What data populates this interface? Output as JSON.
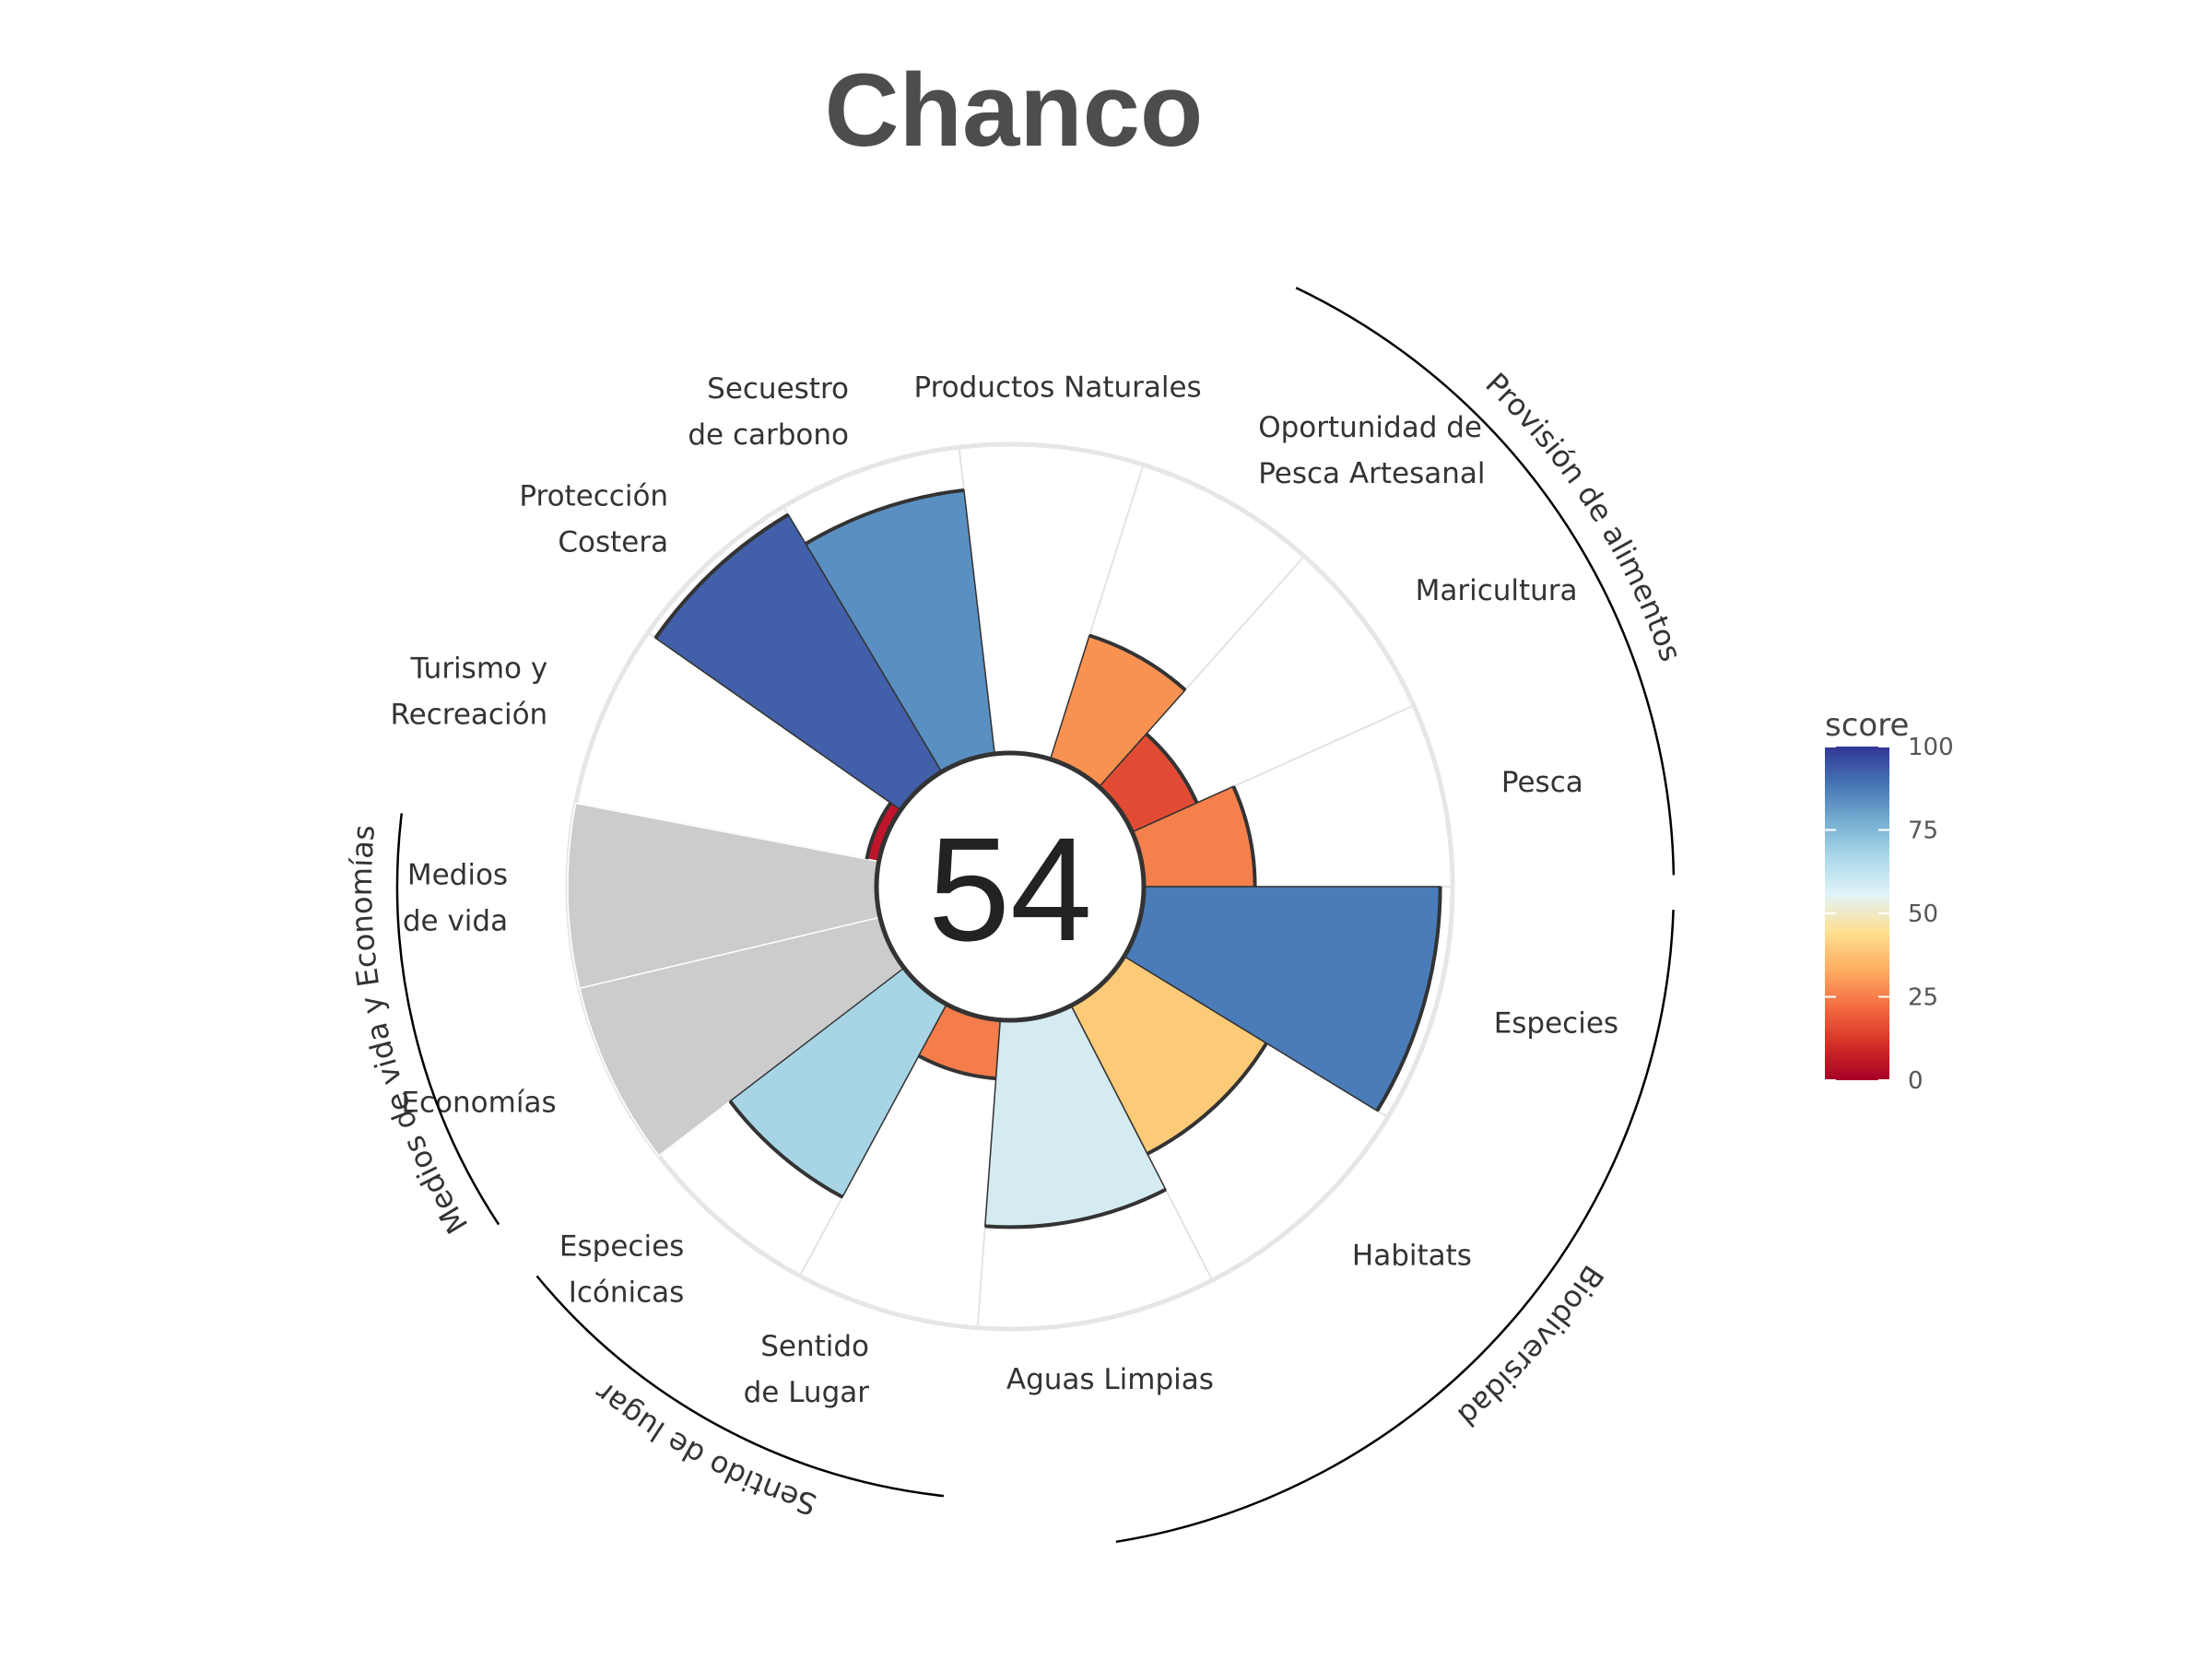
{
  "title": "Chanco",
  "chart_data": {
    "type": "polar-bar",
    "title": "Chanco",
    "overall_score": "54",
    "rlim": [
      0,
      100
    ],
    "grid": true,
    "legend": {
      "title": "score",
      "placement": "right",
      "ticks": [
        "0",
        "25",
        "50",
        "75",
        "100"
      ]
    },
    "colors": {
      "gradient_stops": [
        "#a50026",
        "#d73027",
        "#f46d43",
        "#fdae61",
        "#fee090",
        "#e0f3f8",
        "#abd9e9",
        "#74add1",
        "#4575b4",
        "#313695"
      ],
      "missing": "#cccccc",
      "outline": "#333333",
      "gridline": "#e3e3e3",
      "grid_circle": "#e6e6e6"
    },
    "categories": [
      {
        "label": [
          "Pesca"
        ],
        "value": 36,
        "weight": 1,
        "color": "#f6804b"
      },
      {
        "label": [
          "Maricultura"
        ],
        "value": 23,
        "weight": 1,
        "color": "#e24b33"
      },
      {
        "label": [
          "Oportunidad de",
          "Pesca Artesanal"
        ],
        "value": 42,
        "weight": 1,
        "color": "#f99251"
      },
      {
        "label": [
          "Productos Naturales"
        ],
        "value": null,
        "weight": 1,
        "color": "#ffffff"
      },
      {
        "label": [
          "Secuestro",
          "de carbono"
        ],
        "value": 86,
        "weight": 1,
        "color": "#5a8fc2"
      },
      {
        "label": [
          "Protección",
          "Costera"
        ],
        "value": 97,
        "weight": 1,
        "color": "#4160a9"
      },
      {
        "label": [
          "Turismo y",
          "Recreación"
        ],
        "value": 4,
        "weight": 1,
        "color": "#c0142a"
      },
      {
        "label": [
          "Medios",
          "de vida"
        ],
        "value": null,
        "weight": 1,
        "color": "#cccccc"
      },
      {
        "label": [
          "Economías"
        ],
        "value": null,
        "weight": 1,
        "color": "#cccccc"
      },
      {
        "label": [
          "Especies",
          "Icónicas"
        ],
        "value": 71,
        "weight": 1,
        "color": "#a7d5e6"
      },
      {
        "label": [
          "Sentido",
          "de Lugar"
        ],
        "value": 19,
        "weight": 1,
        "color": "#f47d4b"
      },
      {
        "label": [
          "Aguas Limpias"
        ],
        "value": 67,
        "weight": 1.3,
        "color": "#d5ebf2"
      },
      {
        "label": [
          "Habitats"
        ],
        "value": 54,
        "weight": 1.3,
        "color": "#fdca78"
      },
      {
        "label": [
          "Especies"
        ],
        "value": 96,
        "weight": 1.3,
        "color": "#4a7cb9"
      }
    ],
    "groups": [
      {
        "name": "Provisión de alimentos"
      },
      {
        "name": "Biodiversidad"
      },
      {
        "name": "Sentido de lugar"
      },
      {
        "name": "Medios de vida y Economías"
      }
    ]
  }
}
